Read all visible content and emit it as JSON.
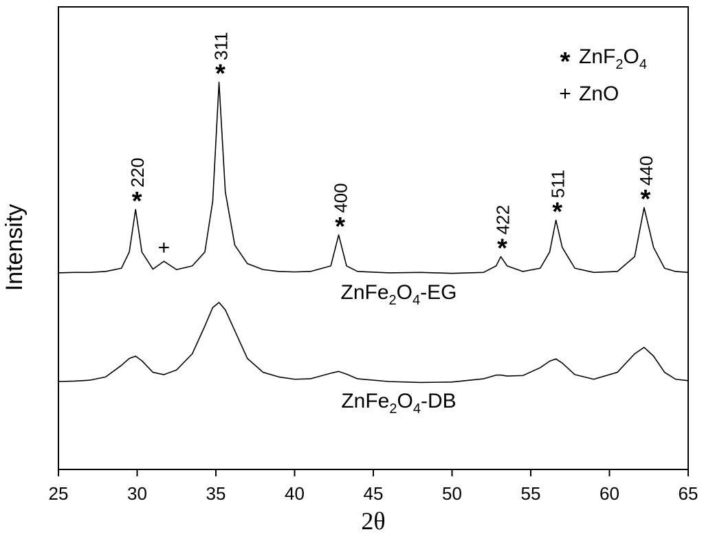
{
  "chart_data": {
    "type": "line",
    "x_label": "2θ",
    "y_label": "Intensity",
    "xlim": [
      25,
      65
    ],
    "ylim": [
      0,
      100
    ],
    "xticks": [
      25,
      30,
      35,
      40,
      45,
      50,
      55,
      60,
      65
    ],
    "x": [
      25,
      26,
      27,
      28,
      29,
      29.5,
      29.9,
      30.3,
      31,
      31.7,
      32.5,
      33.5,
      34.3,
      34.8,
      35.2,
      35.6,
      36.2,
      37,
      38,
      39,
      40,
      41,
      42.3,
      42.8,
      43.3,
      44,
      46,
      48,
      50,
      52,
      52.8,
      53.1,
      53.5,
      54.5,
      55.6,
      56.2,
      56.6,
      57,
      57.8,
      59,
      60.5,
      61.6,
      62.2,
      62.8,
      63.5,
      64.2,
      65
    ],
    "series": [
      {
        "label": [
          "ZnFe",
          "2",
          "O",
          "4",
          "-EG"
        ],
        "color": "#000000",
        "values": [
          42.5,
          42.6,
          42.6,
          42.8,
          43.5,
          47,
          56.2,
          47,
          43.3,
          45,
          43.2,
          44,
          47,
          58,
          83.7,
          60,
          48.5,
          44.5,
          43.2,
          42.8,
          42.7,
          42.8,
          44,
          50.7,
          44,
          42.8,
          42.5,
          42.6,
          42.4,
          42.6,
          44,
          46,
          44,
          42.8,
          43.5,
          47,
          53.9,
          48,
          43.5,
          42.6,
          42.8,
          46,
          56.6,
          48,
          43.5,
          42.8,
          42.6
        ]
      },
      {
        "label": [
          "ZnFe",
          "2",
          "O",
          "4",
          "-DB"
        ],
        "color": "#000000",
        "values": [
          19,
          19.1,
          19.3,
          20,
          22.5,
          24,
          24.5,
          23.5,
          21,
          20.5,
          21.5,
          25,
          31,
          35,
          36.1,
          34.5,
          30,
          24,
          21,
          20,
          19.5,
          19.6,
          20.8,
          21.2,
          20.6,
          19.6,
          19,
          18.8,
          18.9,
          19.6,
          20.4,
          20.4,
          20.2,
          20.3,
          22,
          23.4,
          23.9,
          23,
          20.5,
          19.5,
          21,
          25,
          26.4,
          24.5,
          21,
          19.5,
          19.2
        ]
      }
    ],
    "annotations": [
      {
        "marker": "*",
        "label": "220",
        "x": 29.9
      },
      {
        "marker": "+",
        "x": 31.7
      },
      {
        "marker": "*",
        "label": "311",
        "x": 35.2
      },
      {
        "marker": "*",
        "label": "400",
        "x": 42.8
      },
      {
        "marker": "*",
        "label": "422",
        "x": 53.1
      },
      {
        "marker": "*",
        "label": "511",
        "x": 56.6
      },
      {
        "marker": "*",
        "label": "440",
        "x": 62.2
      }
    ],
    "legend": [
      {
        "marker": "*",
        "label": [
          "ZnF",
          "2",
          "O",
          "4"
        ]
      },
      {
        "marker": "+",
        "label": [
          "ZnO"
        ]
      }
    ]
  }
}
